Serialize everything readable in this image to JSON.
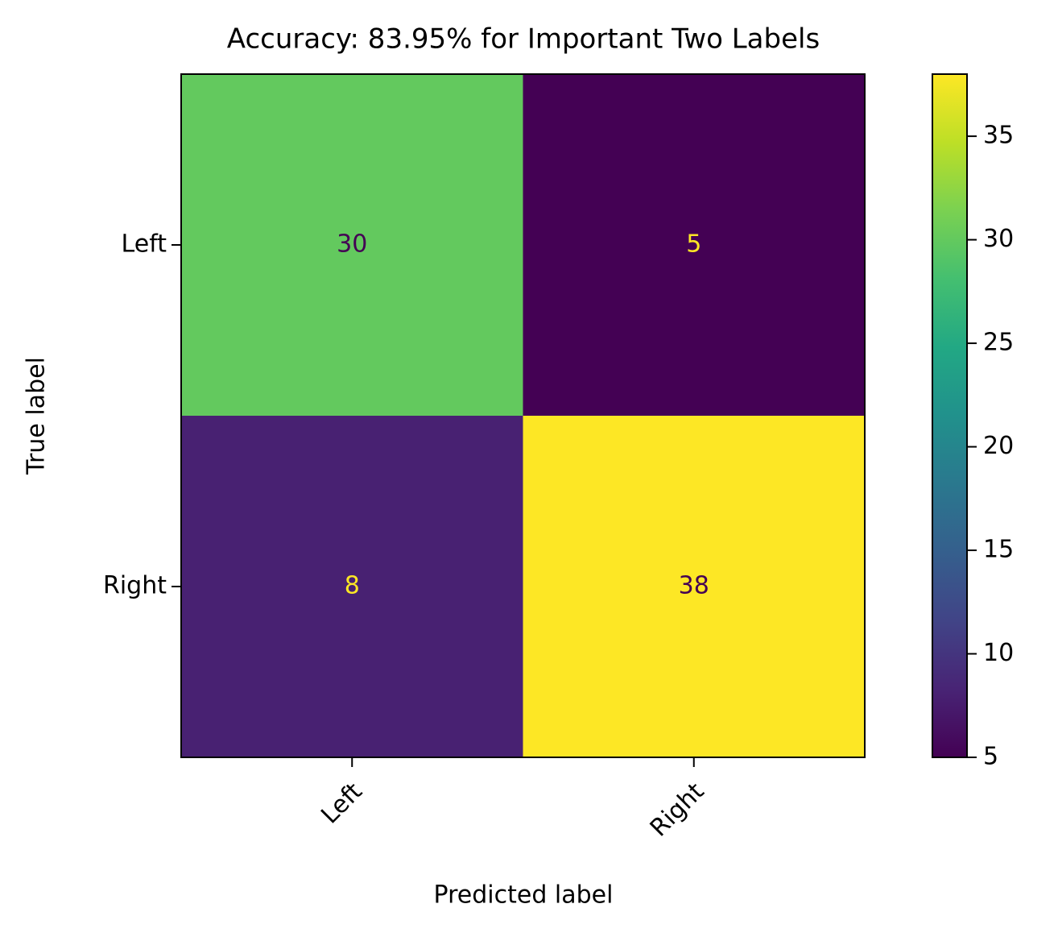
{
  "chart_data": {
    "type": "heatmap",
    "title": "Accuracy: 83.95% for Important Two Labels",
    "xlabel": "Predicted label",
    "ylabel": "True label",
    "x_categories": [
      "Left",
      "Right"
    ],
    "y_categories": [
      "Left",
      "Right"
    ],
    "values": [
      [
        30,
        5
      ],
      [
        8,
        38
      ]
    ],
    "colormap": "viridis",
    "clim": [
      5,
      38
    ],
    "cticks": [
      5,
      10,
      15,
      20,
      25,
      30,
      35
    ]
  }
}
